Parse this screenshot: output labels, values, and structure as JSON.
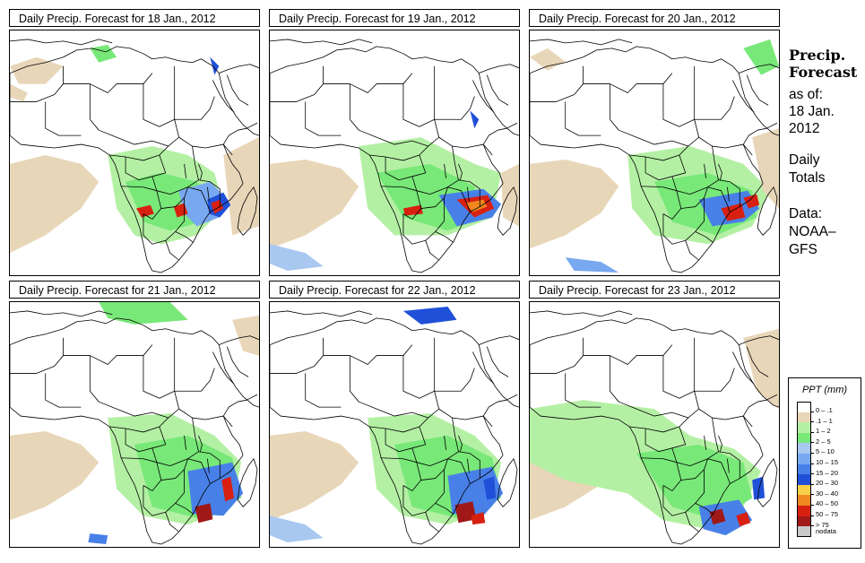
{
  "panels": [
    {
      "title": "Daily Precip. Forecast for  18 Jan., 2012"
    },
    {
      "title": "Daily Precip. Forecast for  19 Jan., 2012"
    },
    {
      "title": "Daily Precip. Forecast for  20 Jan., 2012"
    },
    {
      "title": "Daily Precip. Forecast for  21 Jan., 2012"
    },
    {
      "title": "Daily Precip. Forecast for  22 Jan., 2012"
    },
    {
      "title": "Daily Precip. Forecast for  23 Jan., 2012"
    }
  ],
  "side": {
    "title_line1": "Precip.",
    "title_line2": "Forecast",
    "asof_line1": "as of:",
    "asof_line2": "18 Jan.",
    "asof_line3": "2012",
    "totals_line1": "Daily",
    "totals_line2": "Totals",
    "source_line1": "Data:",
    "source_line2": "NOAA–",
    "source_line3": "GFS"
  },
  "legend": {
    "title": "PPT (mm)",
    "items": [
      {
        "label": "0 – .1",
        "color": "#ffffff"
      },
      {
        "label": ".1 – 1",
        "color": "#e8d6b8"
      },
      {
        "label": "1 – 2",
        "color": "#b4f0a4"
      },
      {
        "label": "2 – 5",
        "color": "#78e878"
      },
      {
        "label": "5 – 10",
        "color": "#a8c8f0"
      },
      {
        "label": "10 – 15",
        "color": "#78a8f0"
      },
      {
        "label": "15 – 20",
        "color": "#4880e8"
      },
      {
        "label": "20 – 30",
        "color": "#2050d8"
      },
      {
        "label": "30 – 40",
        "color": "#f8d048"
      },
      {
        "label": "40 – 50",
        "color": "#f08820"
      },
      {
        "label": "50 – 75",
        "color": "#d82010"
      },
      {
        "label": "> 75",
        "color": "#a01818"
      },
      {
        "label": "nodata",
        "color": "#c8c8c8"
      }
    ]
  },
  "colors": {
    "tan": "#e8d6b8",
    "light_green": "#b4f0a4",
    "green": "#78e878",
    "light_blue": "#a8c8f0",
    "blue": "#4880e8",
    "dark_blue": "#2050d8",
    "red": "#d82010",
    "dark_red": "#a01818",
    "orange": "#f08820"
  }
}
